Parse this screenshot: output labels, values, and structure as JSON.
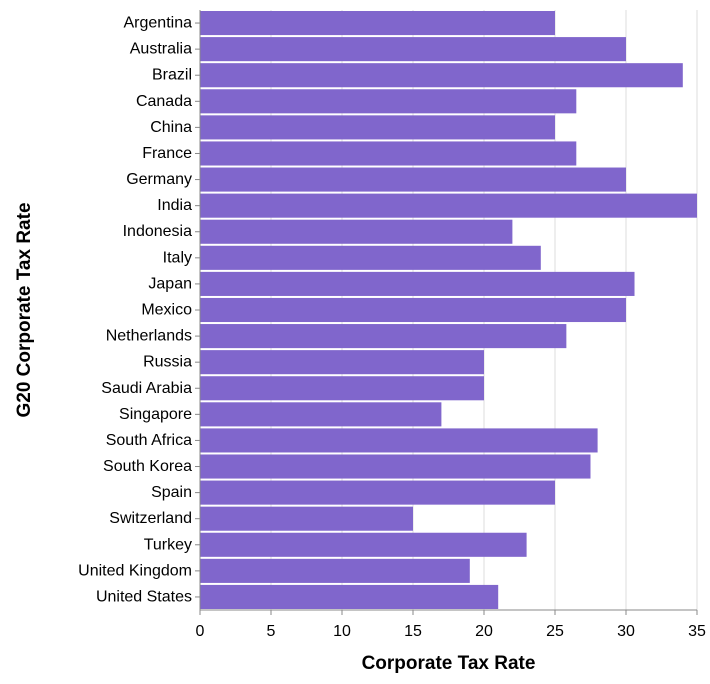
{
  "chart_data": {
    "type": "bar",
    "orientation": "horizontal",
    "xlabel": "Corporate Tax Rate",
    "ylabel": "G20 Corporate Tax Rate",
    "xlim": [
      0,
      35
    ],
    "xticks": [
      0,
      5,
      10,
      15,
      20,
      25,
      30,
      35
    ],
    "grid": true,
    "bar_color": "#8066cc",
    "categories": [
      "Argentina",
      "Australia",
      "Brazil",
      "Canada",
      "China",
      "France",
      "Germany",
      "India",
      "Indonesia",
      "Italy",
      "Japan",
      "Mexico",
      "Netherlands",
      "Russia",
      "Saudi Arabia",
      "Singapore",
      "South Africa",
      "South Korea",
      "Spain",
      "Switzerland",
      "Turkey",
      "United Kingdom",
      "United States"
    ],
    "values": [
      25,
      30,
      34,
      26.5,
      25,
      26.5,
      30,
      35,
      22,
      24,
      30.6,
      30,
      25.8,
      20,
      20,
      17,
      28,
      27.5,
      25,
      15,
      23,
      19,
      21
    ]
  }
}
